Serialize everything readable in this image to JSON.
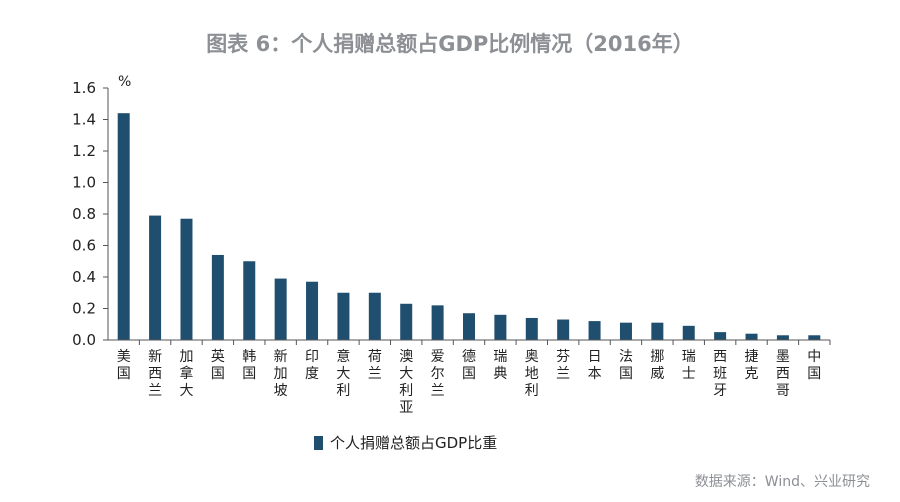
{
  "title": "图表 6：个人捐赠总额占GDP比例情况（2016年）",
  "source": "数据来源：Wind、兴业研究",
  "colors": {
    "bar": "#1f4e6e",
    "axis": "#555555",
    "grid": "#d9d9d9"
  },
  "chart_data": {
    "type": "bar",
    "title": "图表 6：个人捐赠总额占GDP比例情况（2016年）",
    "ylabel": "%",
    "xlabel": "",
    "ylim": [
      0,
      1.6
    ],
    "yticks": [
      "0.0",
      "0.2",
      "0.4",
      "0.6",
      "0.8",
      "1.0",
      "1.2",
      "1.4",
      "1.6"
    ],
    "grid": false,
    "legend_position": "bottom",
    "categories": [
      "美国",
      "新西兰",
      "加拿大",
      "英国",
      "韩国",
      "新加坡",
      "印度",
      "意大利",
      "荷兰",
      "澳大利亚",
      "爱尔兰",
      "德国",
      "瑞典",
      "奥地利",
      "芬兰",
      "日本",
      "法国",
      "挪威",
      "瑞士",
      "西班牙",
      "捷克",
      "墨西哥",
      "中国"
    ],
    "series": [
      {
        "name": "个人捐赠总额占GDP比重",
        "values": [
          1.44,
          0.79,
          0.77,
          0.54,
          0.5,
          0.39,
          0.37,
          0.3,
          0.3,
          0.23,
          0.22,
          0.17,
          0.16,
          0.14,
          0.13,
          0.12,
          0.11,
          0.11,
          0.09,
          0.05,
          0.04,
          0.03,
          0.03
        ]
      }
    ]
  }
}
